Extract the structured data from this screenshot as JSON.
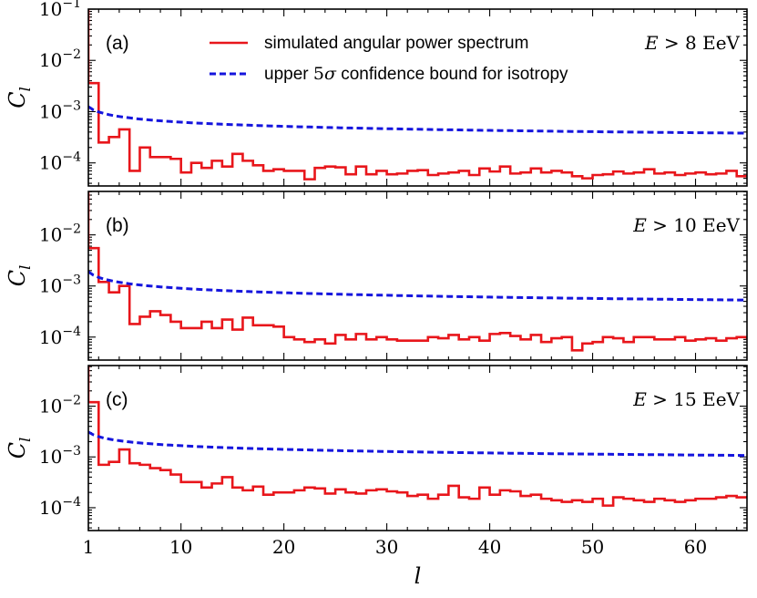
{
  "chart_data": {
    "type": "line",
    "xlabel": "l",
    "ylabel": "C_l",
    "xlim": [
      1,
      65
    ],
    "x_ticks": [
      1,
      10,
      20,
      30,
      40,
      50,
      60
    ],
    "legend": {
      "placement": "top-right of panel (a)",
      "entries": [
        {
          "name": "simulated angular power spectrum",
          "style": "solid",
          "color": "#e8161b"
        },
        {
          "name": "upper 5σ confidence bound for isotropy",
          "style": "dashed",
          "color": "#1515dd"
        }
      ]
    },
    "panels": [
      {
        "tag": "(a)",
        "energy_label": "E > 8 EeV",
        "ylim_log10": [
          -4.45,
          -1
        ],
        "y_ticks": [
          -4,
          -3,
          -2,
          -1
        ],
        "series": [
          {
            "name": "simulated angular power spectrum",
            "x": [
              1,
              2,
              3,
              4,
              5,
              6,
              7,
              8,
              9,
              10,
              11,
              12,
              13,
              14,
              15,
              16,
              17,
              18,
              19,
              20,
              21,
              22,
              23,
              24,
              25,
              26,
              27,
              28,
              29,
              30,
              31,
              32,
              33,
              34,
              35,
              36,
              37,
              38,
              39,
              40,
              41,
              42,
              43,
              44,
              45,
              46,
              47,
              48,
              49,
              50,
              51,
              52,
              53,
              54,
              55,
              56,
              57,
              58,
              59,
              60,
              61,
              62,
              63,
              64,
              65
            ],
            "values": [
              0.0036,
              0.00025,
              0.00032,
              0.00045,
              7e-05,
              0.0002,
              0.00013,
              0.00013,
              0.00012,
              6.5e-05,
              0.0001,
              8e-05,
              0.00011,
              8.5e-05,
              0.00015,
              0.00011,
              9e-05,
              7e-05,
              7.5e-05,
              7e-05,
              7e-05,
              4.8e-05,
              8e-05,
              8.5e-05,
              8.2e-05,
              6e-05,
              8.5e-05,
              6e-05,
              7e-05,
              6e-05,
              6.2e-05,
              7e-05,
              7.2e-05,
              5.8e-05,
              6.2e-05,
              6.5e-05,
              7e-05,
              5.8e-05,
              7.8e-05,
              6.8e-05,
              8.5e-05,
              6.2e-05,
              6.5e-05,
              7.8e-05,
              6.5e-05,
              7e-05,
              6.5e-05,
              5.5e-05,
              5e-05,
              5.8e-05,
              6e-05,
              6.8e-05,
              6.2e-05,
              6.5e-05,
              7.5e-05,
              6.2e-05,
              6.5e-05,
              5.8e-05,
              6.2e-05,
              6.5e-05,
              6e-05,
              6.2e-05,
              7e-05,
              5.5e-05,
              6e-05
            ]
          },
          {
            "name": "upper 5σ confidence bound for isotropy",
            "y_at_l1": 0.00125,
            "y_at_l65": 0.00038
          }
        ]
      },
      {
        "tag": "(b)",
        "energy_label": "E > 10 EeV",
        "ylim_log10": [
          -4.45,
          -1.15
        ],
        "y_ticks": [
          -4,
          -3,
          -2
        ],
        "series": [
          {
            "name": "simulated angular power spectrum",
            "x": [
              1,
              2,
              3,
              4,
              5,
              6,
              7,
              8,
              9,
              10,
              11,
              12,
              13,
              14,
              15,
              16,
              17,
              18,
              19,
              20,
              21,
              22,
              23,
              24,
              25,
              26,
              27,
              28,
              29,
              30,
              31,
              32,
              33,
              34,
              35,
              36,
              37,
              38,
              39,
              40,
              41,
              42,
              43,
              44,
              45,
              46,
              47,
              48,
              49,
              50,
              51,
              52,
              53,
              54,
              55,
              56,
              57,
              58,
              59,
              60,
              61,
              62,
              63,
              64,
              65
            ],
            "values": [
              0.0055,
              0.0012,
              0.00075,
              0.001,
              0.00018,
              0.00025,
              0.00032,
              0.00027,
              0.0002,
              0.00015,
              0.00015,
              0.0002,
              0.00015,
              0.00022,
              0.00014,
              0.00024,
              0.00017,
              0.00017,
              0.00016,
              0.0001,
              9e-05,
              8e-05,
              9e-05,
              7.5e-05,
              0.00011,
              9e-05,
              0.000115,
              9e-05,
              0.0001,
              9e-05,
              8.5e-05,
              8.5e-05,
              8.5e-05,
              0.0001,
              9.5e-05,
              0.00011,
              9e-05,
              0.0001,
              8.5e-05,
              0.000115,
              0.00012,
              0.000105,
              9e-05,
              0.00011,
              8e-05,
              9.5e-05,
              0.0001,
              5.5e-05,
              7.5e-05,
              8e-05,
              0.0001,
              9.5e-05,
              8e-05,
              0.0001,
              0.0001,
              9e-05,
              9e-05,
              0.0001,
              8.5e-05,
              9e-05,
              9.5e-05,
              8.5e-05,
              9.5e-05,
              0.0001,
              9e-05
            ]
          },
          {
            "name": "upper 5σ confidence bound for isotropy",
            "y_at_l1": 0.0019,
            "y_at_l65": 0.00053
          }
        ]
      },
      {
        "tag": "(c)",
        "energy_label": "E > 15 EeV",
        "ylim_log10": [
          -4.45,
          -1.2
        ],
        "y_ticks": [
          -4,
          -3,
          -2
        ],
        "series": [
          {
            "name": "simulated angular power spectrum",
            "x": [
              1,
              2,
              3,
              4,
              5,
              6,
              7,
              8,
              9,
              10,
              11,
              12,
              13,
              14,
              15,
              16,
              17,
              18,
              19,
              20,
              21,
              22,
              23,
              24,
              25,
              26,
              27,
              28,
              29,
              30,
              31,
              32,
              33,
              34,
              35,
              36,
              37,
              38,
              39,
              40,
              41,
              42,
              43,
              44,
              45,
              46,
              47,
              48,
              49,
              50,
              51,
              52,
              53,
              54,
              55,
              56,
              57,
              58,
              59,
              60,
              61,
              62,
              63,
              64,
              65
            ],
            "values": [
              0.012,
              0.0007,
              0.0008,
              0.0014,
              0.00075,
              0.0007,
              0.0006,
              0.00055,
              0.00045,
              0.00032,
              0.00032,
              0.00025,
              0.0003,
              0.0004,
              0.00025,
              0.00022,
              0.00026,
              0.00018,
              0.0002,
              0.0002,
              0.00022,
              0.00025,
              0.00024,
              0.00019,
              0.00023,
              0.0002,
              0.00019,
              0.00022,
              0.00023,
              0.00021,
              0.0002,
              0.00017,
              0.00018,
              0.00015,
              0.00018,
              0.00027,
              0.00016,
              0.00015,
              0.00025,
              0.00018,
              0.00022,
              0.00021,
              0.00017,
              0.00018,
              0.00015,
              0.00014,
              0.00013,
              0.00014,
              0.00013,
              0.00015,
              0.00011,
              0.00016,
              0.00015,
              0.00014,
              0.00013,
              0.00015,
              0.00014,
              0.00013,
              0.00014,
              0.00015,
              0.00015,
              0.00016,
              0.00017,
              0.00016,
              0.00017
            ]
          },
          {
            "name": "upper 5σ confidence bound for isotropy",
            "y_at_l1": 0.0031,
            "y_at_l65": 0.00107
          }
        ]
      }
    ]
  }
}
